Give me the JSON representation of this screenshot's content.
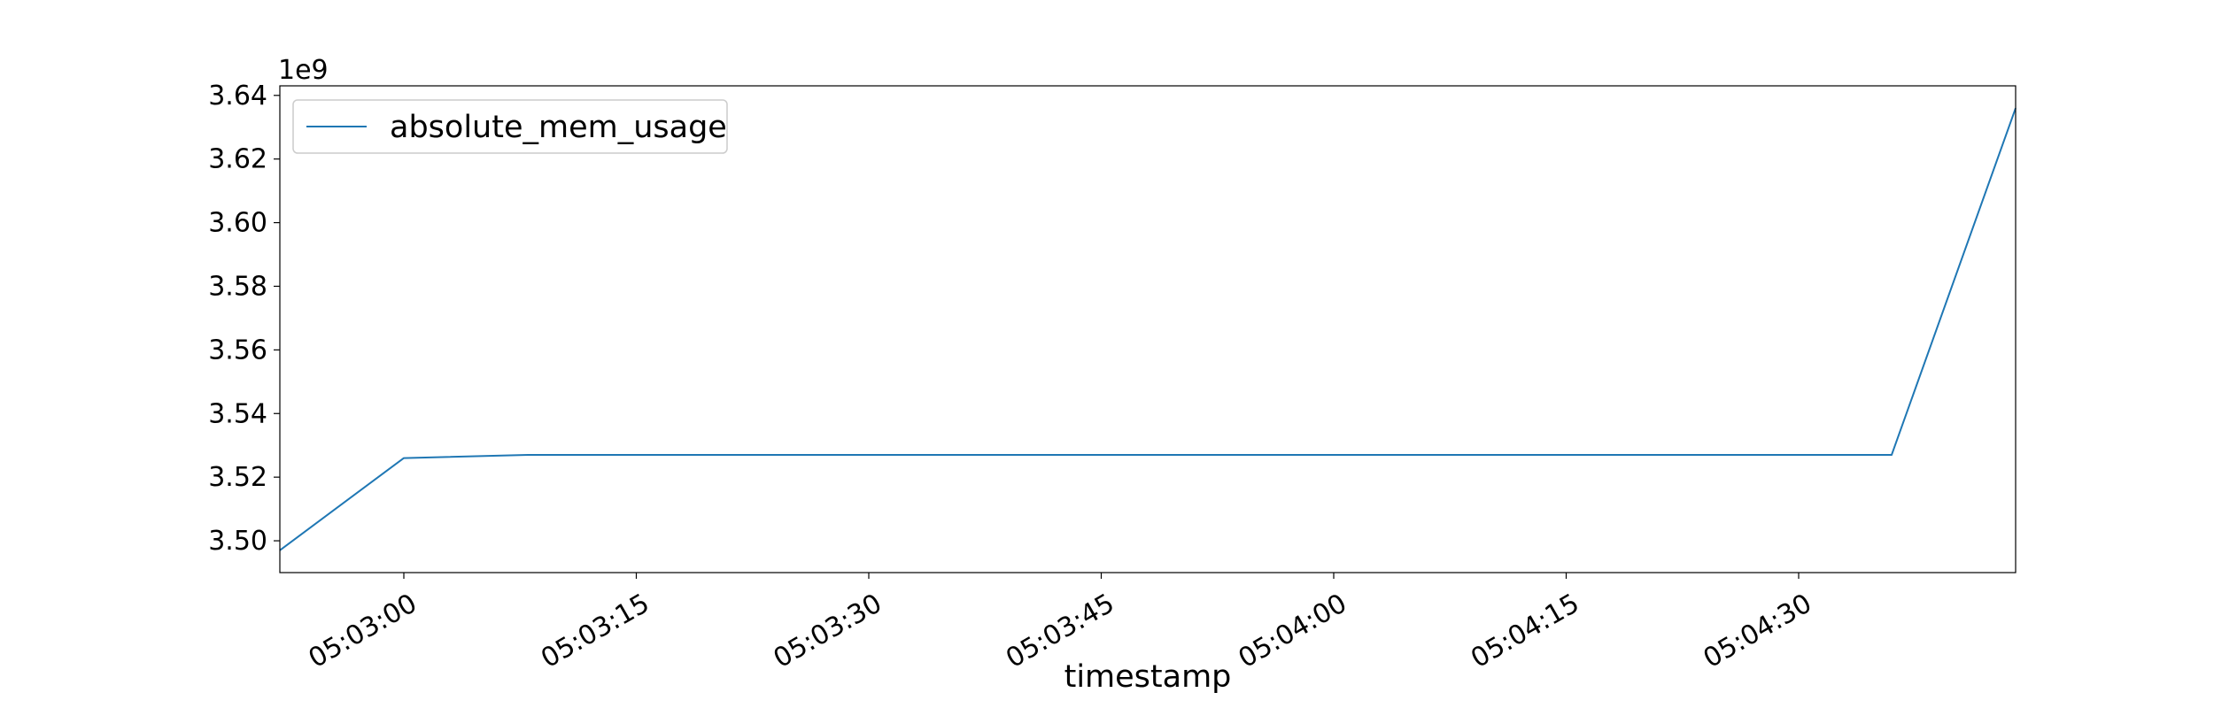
{
  "chart_data": {
    "type": "line",
    "title": "",
    "xlabel": "timestamp",
    "ylabel": "",
    "y_offset_label": "1e9",
    "y_scale": 1000000000,
    "x": [
      "05:02:52",
      "05:03:00",
      "05:03:08",
      "05:03:16",
      "05:03:24",
      "05:03:32",
      "05:03:40",
      "05:03:48",
      "05:03:56",
      "05:04:04",
      "05:04:12",
      "05:04:20",
      "05:04:28",
      "05:04:36",
      "05:04:44"
    ],
    "series": [
      {
        "name": "absolute_mem_usage",
        "color": "#1f77b4",
        "values": [
          3497000000,
          3526000000,
          3527000000,
          3527000000,
          3527000000,
          3527000000,
          3527000000,
          3527000000,
          3527000000,
          3527000000,
          3527000000,
          3527000000,
          3527000000,
          3527000000,
          3636000000
        ]
      }
    ],
    "xlim": [
      "05:02:52",
      "05:04:44"
    ],
    "ylim": [
      3490000000,
      3643000000
    ],
    "xticks": [
      "05:03:00",
      "05:03:15",
      "05:03:30",
      "05:03:45",
      "05:04:00",
      "05:04:15",
      "05:04:30"
    ],
    "yticks": [
      3.5,
      3.52,
      3.54,
      3.56,
      3.58,
      3.6,
      3.62,
      3.64
    ],
    "ytick_labels": [
      "3.50",
      "3.52",
      "3.54",
      "3.56",
      "3.58",
      "3.60",
      "3.62",
      "3.64"
    ],
    "grid": false,
    "legend_position": "upper-left"
  }
}
